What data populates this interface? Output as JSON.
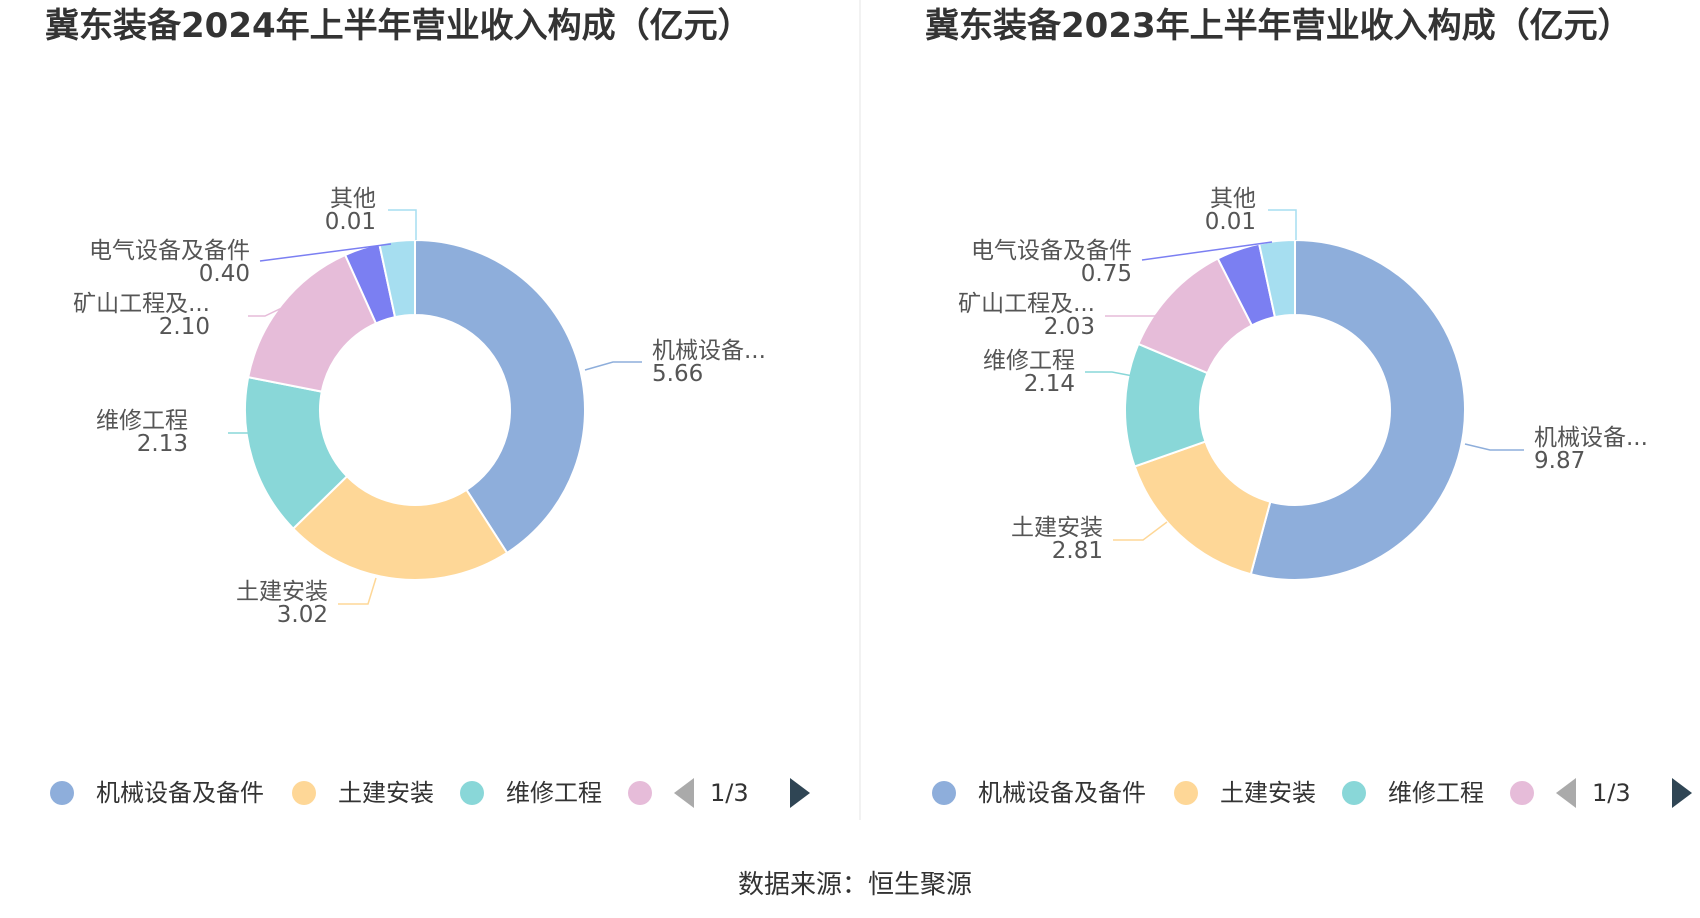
{
  "chart_data": [
    {
      "type": "pie",
      "title": "冀东装备2024年上半年营业收入构成（亿元）",
      "slices": [
        {
          "name": "机械设备及备件",
          "label": "机械设备...",
          "value": 5.66,
          "value_label": "5.66",
          "color": "#8eaedb"
        },
        {
          "name": "土建安装",
          "label": "土建安装",
          "value": 3.02,
          "value_label": "3.02",
          "color": "#fed797"
        },
        {
          "name": "维修工程",
          "label": "维修工程",
          "value": 2.13,
          "value_label": "2.13",
          "color": "#89d7d8"
        },
        {
          "name": "矿山工程及...",
          "label": "矿山工程及...",
          "value": 2.1,
          "value_label": "2.10",
          "color": "#e6bcd9"
        },
        {
          "name": "电气设备及备件",
          "label": "电气设备及备件",
          "value": 0.4,
          "value_label": "0.40",
          "color": "#7b7ff2"
        },
        {
          "name": "其他",
          "label": "其他",
          "value": 0.01,
          "value_label": "0.01",
          "color": "#a6def0"
        }
      ],
      "legend": {
        "placement": "bottom",
        "items": [
          "机械设备及备件",
          "土建安装",
          "维修工程"
        ],
        "page": "1/3"
      }
    },
    {
      "type": "pie",
      "title": "冀东装备2023年上半年营业收入构成（亿元）",
      "slices": [
        {
          "name": "机械设备及备件",
          "label": "机械设备...",
          "value": 9.87,
          "value_label": "9.87",
          "color": "#8eaedb"
        },
        {
          "name": "土建安装",
          "label": "土建安装",
          "value": 2.81,
          "value_label": "2.81",
          "color": "#fed797"
        },
        {
          "name": "维修工程",
          "label": "维修工程",
          "value": 2.14,
          "value_label": "2.14",
          "color": "#89d7d8"
        },
        {
          "name": "矿山工程及...",
          "label": "矿山工程及...",
          "value": 2.03,
          "value_label": "2.03",
          "color": "#e6bcd9"
        },
        {
          "name": "电气设备及备件",
          "label": "电气设备及备件",
          "value": 0.75,
          "value_label": "0.75",
          "color": "#7b7ff2"
        },
        {
          "name": "其他",
          "label": "其他",
          "value": 0.01,
          "value_label": "0.01",
          "color": "#a6def0"
        }
      ],
      "legend": {
        "placement": "bottom",
        "items": [
          "机械设备及备件",
          "土建安装",
          "维修工程"
        ],
        "page": "1/3"
      }
    }
  ],
  "footer": {
    "source": "数据来源：恒生聚源"
  }
}
